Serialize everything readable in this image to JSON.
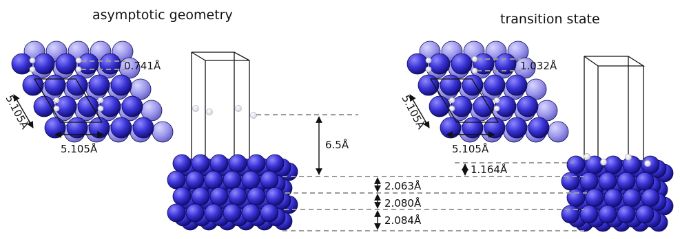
{
  "titles": {
    "left": "asymptotic geometry",
    "right": "transition state"
  },
  "labels": {
    "h2_bond_left": "0.741Å",
    "h2_bond_right": "1.032Å",
    "cell_side_left": "5.105Å",
    "cell_bottom_left": "5.105Å",
    "cell_side_right": "5.105Å",
    "cell_bottom_right": "5.105Å",
    "height_left": "6.5Å",
    "height_right": "1.164Å",
    "layer_1": "2.063Å",
    "layer_2": "2.080Å",
    "layer_3": "2.084Å"
  },
  "colors": {
    "atom": "#3a33d6",
    "atom_light": "#8f8ae6",
    "hydrogen": "#ffffff",
    "guide": "#9a9a9a"
  }
}
